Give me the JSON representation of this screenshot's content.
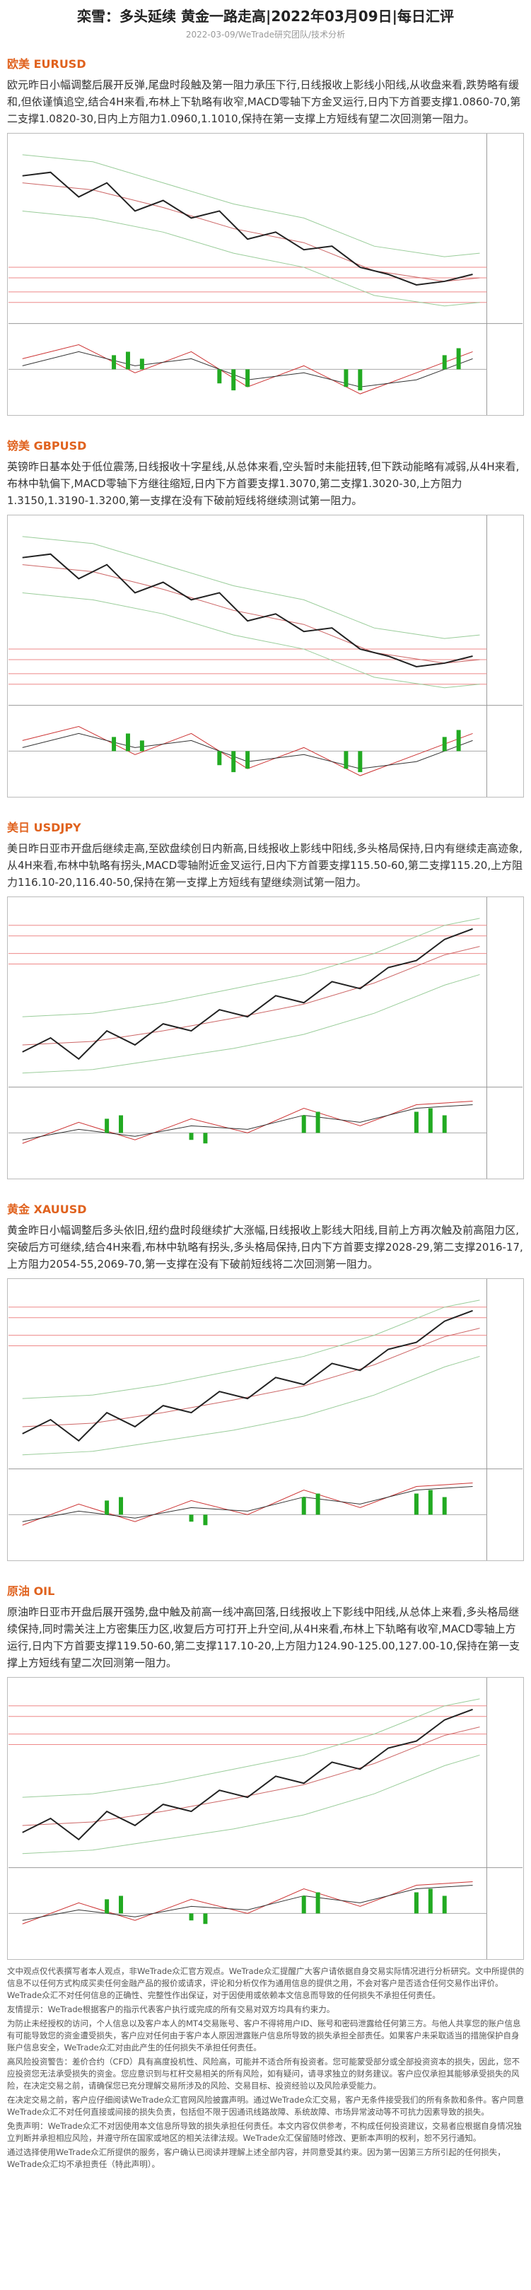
{
  "header": {
    "title": "栾雪：多头延续 黄金一路走高|2022年03月09日|每日汇评",
    "meta": "2022-03-09/WeTrade研究团队/技术分析"
  },
  "sections": [
    {
      "heading": "欧美 EURUSD",
      "body": "欧元昨日小幅调整后展开反弹,尾盘时段触及第一阻力承压下行,日线报收上影线小阳线,从收盘来看,跌势略有缓和,但依谨慎追空,结合4H来看,布林上下轨略有收窄,MACD零轴下方金叉运行,日内下方首要支撑1.0860-70,第二支撑1.0820-30,日内上方阻力1.0960,1.1010,保持在第一支撑上方短线有望二次回测第一阻力。"
    },
    {
      "heading": "镑美 GBPUSD",
      "body": "英镑昨日基本处于低位震荡,日线报收十字星线,从总体来看,空头暂时未能扭转,但下跌动能略有减弱,从4H来看,布林中轨偏下,MACD零轴下方继往缩短,日内下方首要支撑1.3070,第二支撑1.3020-30,上方阻力1.3150,1.3190-1.3200,第一支撑在没有下破前短线将继续测试第一阻力。"
    },
    {
      "heading": "美日 USDJPY",
      "body": "美日昨日亚市开盘后继续走高,至欧盘续创日内新高,日线报收上影线中阳线,多头格局保持,日内有继续走高迹象,从4H来看,布林中轨略有拐头,MACD零轴附近金叉运行,日内下方首要支撑115.50-60,第二支撑115.20,上方阻力116.10-20,116.40-50,保持在第一支撑上方短线有望继续测试第一阻力。"
    },
    {
      "heading": "黄金 XAUUSD",
      "body": "黄金昨日小幅调整后多头依旧,纽约盘时段继续扩大涨幅,日线报收上影线大阳线,目前上方再次触及前高阻力区,突破后方可继续,结合4H来看,布林中轨略有拐头,多头格局保持,日内下方首要支撑2028-29,第二支撑2016-17,上方阻力2054-55,2069-70,第一支撑在没有下破前短线将二次回测第一阻力。"
    },
    {
      "heading": "原油 OIL",
      "body": "原油昨日亚市开盘后展开强势,盘中触及前高一线冲高回落,日线报收上下影线中阳线,从总体上来看,多头格局继续保持,同时需关注上方密集压力区,收复后方可打开上升空间,从4H来看,布林上下轨略有收窄,MACD零轴上方运行,日内下方首要支撑119.50-60,第二支撑117.10-20,上方阻力124.90-125.00,127.00-10,保持在第一支撑上方短线有望二次回测第一阻力。"
    }
  ],
  "disclaimer": [
    "文中观点仅代表撰写者本人观点，非WeTrade众汇官方观点。WeTrade众汇提醒广大客户请依据自身交易实际情况进行分析研究。文中所提供的信息不以任何方式构成买卖任何金融产品的报价或请求，评论和分析仅作为通用信息的提供之用，不会对客户是否适合任何交易作出评价。WeTrade众汇不对任何信息的正确性、完整性作出保证，对于因使用或依赖本文信息而导致的任何损失不承担任何责任。",
    "友情提示：WeTrade根据客户的指示代表客户执行或完成的所有交易对双方均具有约束力。",
    "为防止未经授权的访问，个人信息以及客户本人的MT4交易账号、客户不得将用户ID、账号和密码泄露给任何第三方。与他人共享您的账户信息有可能导致您的资金遭受损失，客户应对任何由于客户本人原因泄露账户信息所导致的损失承担全部责任。如果客户未采取适当的措施保护自身账户信息安全，WeTrade众汇对由此产生的任何损失不承担任何责任。",
    "高风险投资警告：差价合约（CFD）具有高度投机性、风险高，可能并不适合所有投资者。您可能蒙受部分或全部投资资本的损失，因此，您不应投资您无法承受损失的资金。您应意识到与杠杆交易相关的所有风险，如有疑问，请寻求独立的财务建议。客户应仅承担其能够承受损失的风险，在决定交易之前，请确保您已充分理解交易所涉及的风险、交易目标、投资经验以及风险承受能力。",
    "在决定交易之前，客户应仔细阅读WeTrade众汇官网风险披露声明。通过WeTrade众汇交易，客户无条件接受我们的所有条款和条件。客户同意WeTrade众汇不对任何直接或间接的损失负责，包括但不限于因通讯线路故障、系统故障、市场异常波动等不可抗力因素导致的损失。",
    "免责声明：WeTrade众汇不对因使用本文信息所导致的损失承担任何责任。本文内容仅供参考，不构成任何投资建议，交易者应根据自身情况独立判断并承担相应风险，并遵守所在国家或地区的相关法律法规。WeTrade众汇保留随时修改、更新本声明的权利，恕不另行通知。",
    "通过选择使用WeTrade众汇所提供的服务，客户确认已阅读并理解上述全部内容，并同意受其约束。因为第一因第三方所引起的任何损失，WeTrade众汇均不承担责任（特此声明）。"
  ]
}
